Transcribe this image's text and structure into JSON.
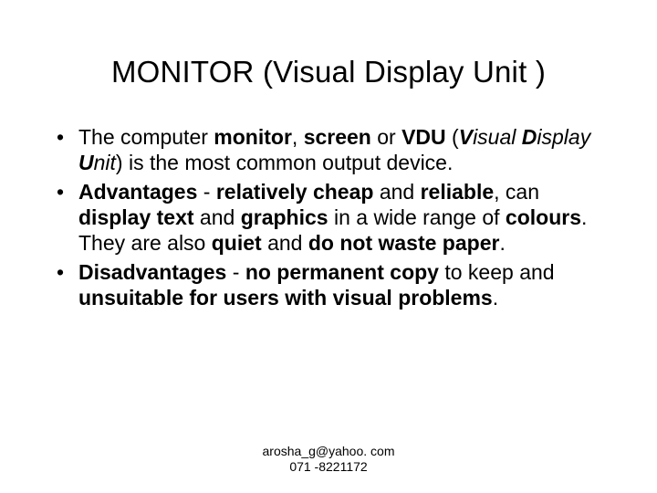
{
  "title": "MONITOR (Visual Display Unit )",
  "bullets": [
    {
      "html": "The computer <span class='b'>monitor</span>, <span class='b'>screen</span> or <span class='b'>VDU</span> (<span class='b i'>V</span><span class='i'>isual </span><span class='b i'>D</span><span class='i'>isplay </span><span class='b i'>U</span><span class='i'>nit</span>) is the most common output device."
    },
    {
      "html": "<span class='b'>Advantages</span> - <span class='b'>relatively cheap</span> and <span class='b'>reliable</span>, can <span class='b'>display text</span> and <span class='b'>graphics</span> in a wide range of <span class='b'>colours</span>. They are also <span class='b'>quiet</span> and <span class='b'>do not waste paper</span>."
    },
    {
      "html": "<span class='b'>Disadvantages</span> - <span class='b'>no permanent copy</span> to keep and <span class='b'>unsuitable for users with visual problems</span>."
    }
  ],
  "footer_line1": "arosha_g@yahoo. com",
  "footer_line2": "071 -8221172",
  "colors": {
    "background": "#ffffff",
    "text": "#000000"
  },
  "typography": {
    "title_fontsize": 33,
    "body_fontsize": 23,
    "footer_fontsize": 14,
    "font_family": "Arial"
  }
}
